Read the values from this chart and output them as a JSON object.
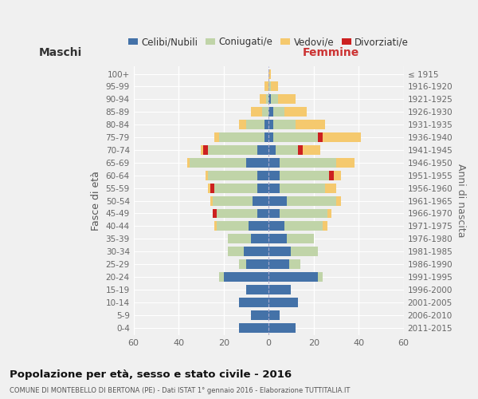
{
  "age_groups": [
    "0-4",
    "5-9",
    "10-14",
    "15-19",
    "20-24",
    "25-29",
    "30-34",
    "35-39",
    "40-44",
    "45-49",
    "50-54",
    "55-59",
    "60-64",
    "65-69",
    "70-74",
    "75-79",
    "80-84",
    "85-89",
    "90-94",
    "95-99",
    "100+"
  ],
  "birth_years": [
    "2011-2015",
    "2006-2010",
    "2001-2005",
    "1996-2000",
    "1991-1995",
    "1986-1990",
    "1981-1985",
    "1976-1980",
    "1971-1975",
    "1966-1970",
    "1961-1965",
    "1956-1960",
    "1951-1955",
    "1946-1950",
    "1941-1945",
    "1936-1940",
    "1931-1935",
    "1926-1930",
    "1921-1925",
    "1916-1920",
    "≤ 1915"
  ],
  "colors": {
    "celibe": "#4472a8",
    "coniugato": "#c0d4a8",
    "vedovo": "#f5c96e",
    "divorziato": "#cc2020"
  },
  "maschi": {
    "celibe": [
      13,
      8,
      13,
      10,
      20,
      10,
      11,
      8,
      9,
      5,
      7,
      5,
      5,
      10,
      5,
      2,
      2,
      0,
      0,
      0,
      0
    ],
    "coniugato": [
      0,
      0,
      0,
      0,
      2,
      3,
      7,
      10,
      14,
      18,
      18,
      19,
      22,
      25,
      22,
      20,
      8,
      3,
      1,
      0,
      0
    ],
    "vedovo": [
      0,
      0,
      0,
      0,
      0,
      0,
      0,
      0,
      1,
      0,
      1,
      1,
      1,
      1,
      1,
      2,
      3,
      5,
      3,
      2,
      0
    ],
    "divorziato": [
      0,
      0,
      0,
      0,
      0,
      0,
      0,
      0,
      0,
      2,
      0,
      2,
      0,
      0,
      2,
      0,
      0,
      0,
      0,
      0,
      0
    ]
  },
  "femmine": {
    "nubile": [
      12,
      5,
      13,
      10,
      22,
      9,
      10,
      8,
      7,
      5,
      8,
      5,
      5,
      5,
      3,
      2,
      2,
      2,
      1,
      0,
      0
    ],
    "coniugata": [
      0,
      0,
      0,
      0,
      2,
      5,
      12,
      12,
      17,
      21,
      22,
      20,
      22,
      25,
      10,
      20,
      10,
      5,
      3,
      1,
      0
    ],
    "vedova": [
      0,
      0,
      0,
      0,
      0,
      0,
      0,
      0,
      2,
      2,
      2,
      5,
      3,
      8,
      8,
      17,
      13,
      10,
      8,
      3,
      1
    ],
    "divorziata": [
      0,
      0,
      0,
      0,
      0,
      0,
      0,
      0,
      0,
      0,
      0,
      0,
      2,
      0,
      2,
      2,
      0,
      0,
      0,
      0,
      0
    ]
  },
  "xlim": 60,
  "title": "Popolazione per età, sesso e stato civile - 2016",
  "subtitle": "COMUNE DI MONTEBELLO DI BERTONA (PE) - Dati ISTAT 1° gennaio 2016 - Elaborazione TUTTITALIA.IT",
  "ylabel_left": "Fasce di età",
  "ylabel_right": "Anni di nascita",
  "bg_color": "#f0f0f0",
  "grid_color": "#ffffff"
}
